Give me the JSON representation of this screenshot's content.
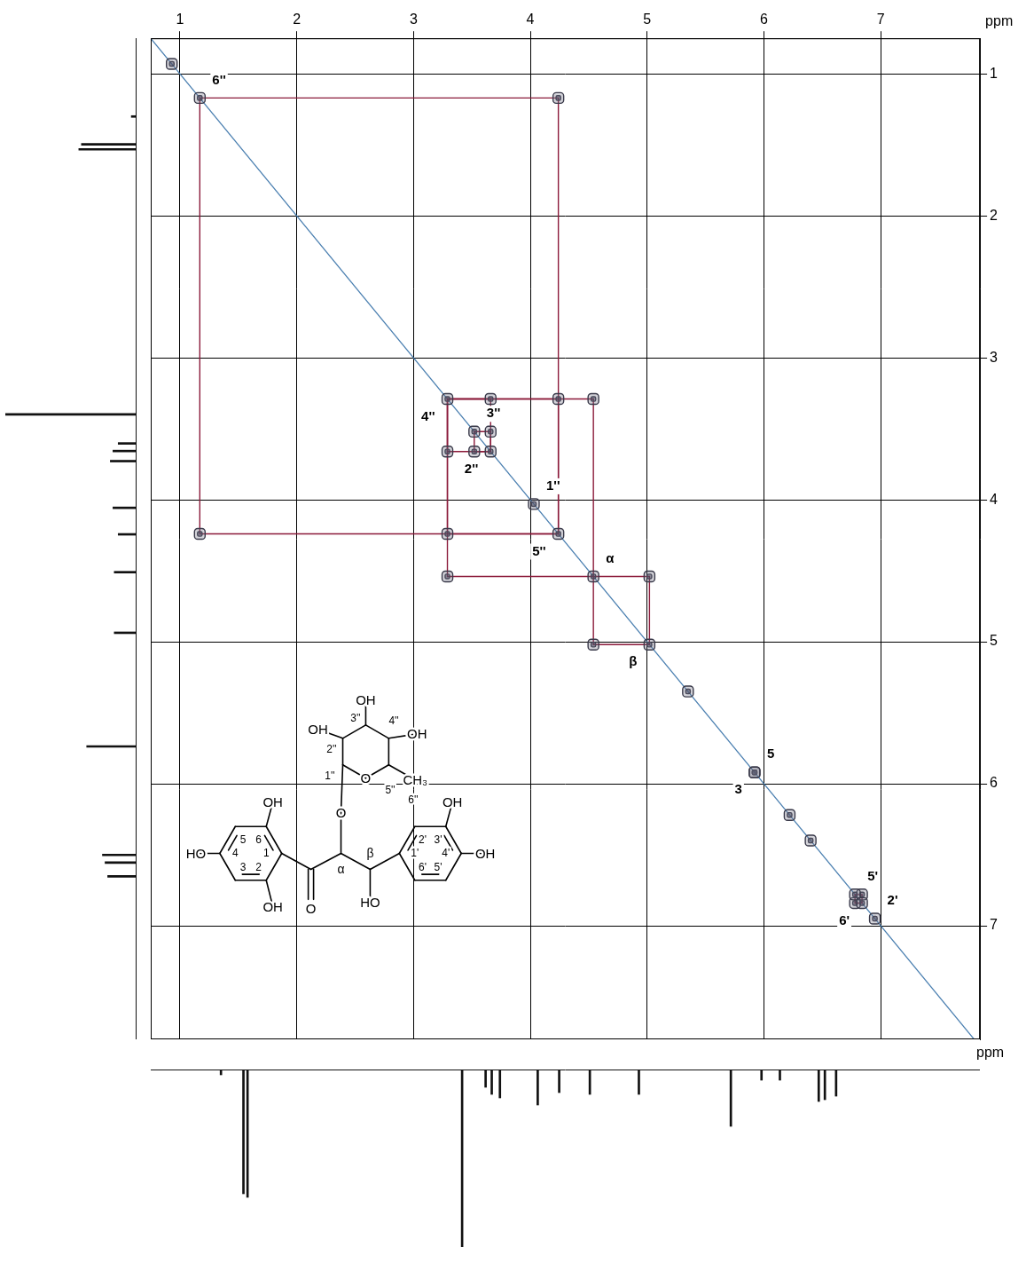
{
  "chart_data": {
    "type": "scatter",
    "x_label": "ppm",
    "y_label": "ppm",
    "xlim": [
      0.75,
      7.85
    ],
    "ylim": [
      0.75,
      7.8
    ],
    "xticks": [
      1,
      2,
      3,
      4,
      5,
      6,
      7
    ],
    "yticks": [
      1,
      2,
      3,
      4,
      5,
      6,
      7
    ],
    "grid": true,
    "peaks": {
      "color": "#3a3a4a",
      "marker": "rectRounded"
    },
    "diagonal": {
      "ppm": [
        0.93,
        1.17,
        3.29,
        3.52,
        3.66,
        4.03,
        4.24,
        4.54,
        5.02,
        5.92,
        5.92,
        6.78,
        6.84,
        6.95,
        5.35,
        6.22,
        6.4
      ],
      "labels": [
        null,
        "6''",
        "4''",
        "3''",
        "2''",
        "1''",
        "5''",
        "α",
        "β",
        "5",
        "3",
        "5'",
        "6'",
        "2'",
        null,
        null,
        null
      ]
    },
    "correlations": {
      "pairs": [
        [
          1.17,
          4.24
        ],
        [
          3.29,
          4.24
        ],
        [
          3.29,
          3.66
        ],
        [
          3.52,
          3.66
        ],
        [
          3.29,
          4.54
        ],
        [
          4.54,
          5.02
        ],
        [
          6.78,
          6.84
        ]
      ],
      "color": "#8b1a3a"
    },
    "diagonal_line": {
      "color": "#4a7fb0"
    },
    "f1_projection": {
      "ppm": [
        0.93,
        1.15,
        1.19,
        3.29,
        3.52,
        3.58,
        3.66,
        4.03,
        4.24,
        4.54,
        5.02,
        5.92,
        6.78,
        6.84,
        6.95
      ],
      "values": [
        4,
        42,
        44,
        100,
        14,
        18,
        20,
        18,
        14,
        17,
        17,
        38,
        26,
        24,
        22
      ],
      "intensity_lim": [
        0,
        100
      ],
      "color": "#111111"
    },
    "f2_projection": {
      "ppm": [
        0.93,
        1.15,
        1.19,
        3.29,
        3.52,
        3.58,
        3.66,
        4.03,
        4.24,
        4.54,
        5.02,
        5.92,
        6.22,
        6.4,
        6.78,
        6.84,
        6.95
      ],
      "values": [
        3,
        70,
        72,
        100,
        10,
        14,
        16,
        20,
        13,
        14,
        14,
        32,
        6,
        6,
        18,
        17,
        15
      ],
      "intensity_lim": [
        0,
        100
      ],
      "color": "#111111"
    }
  },
  "structure": {
    "ring_a": [
      "1",
      "2",
      "3",
      "4",
      "5",
      "6"
    ],
    "ring_b": [
      "1'",
      "2'",
      "3'",
      "4'",
      "5'",
      "6'"
    ],
    "chain": [
      "α",
      "β"
    ],
    "sugar": [
      "1''",
      "2''",
      "3''",
      "4''",
      "5''",
      "6''"
    ],
    "hydroxyl": "OH",
    "hydroxyl_reversed": "HO",
    "oxygen": "O",
    "methyl": "CH₃"
  }
}
